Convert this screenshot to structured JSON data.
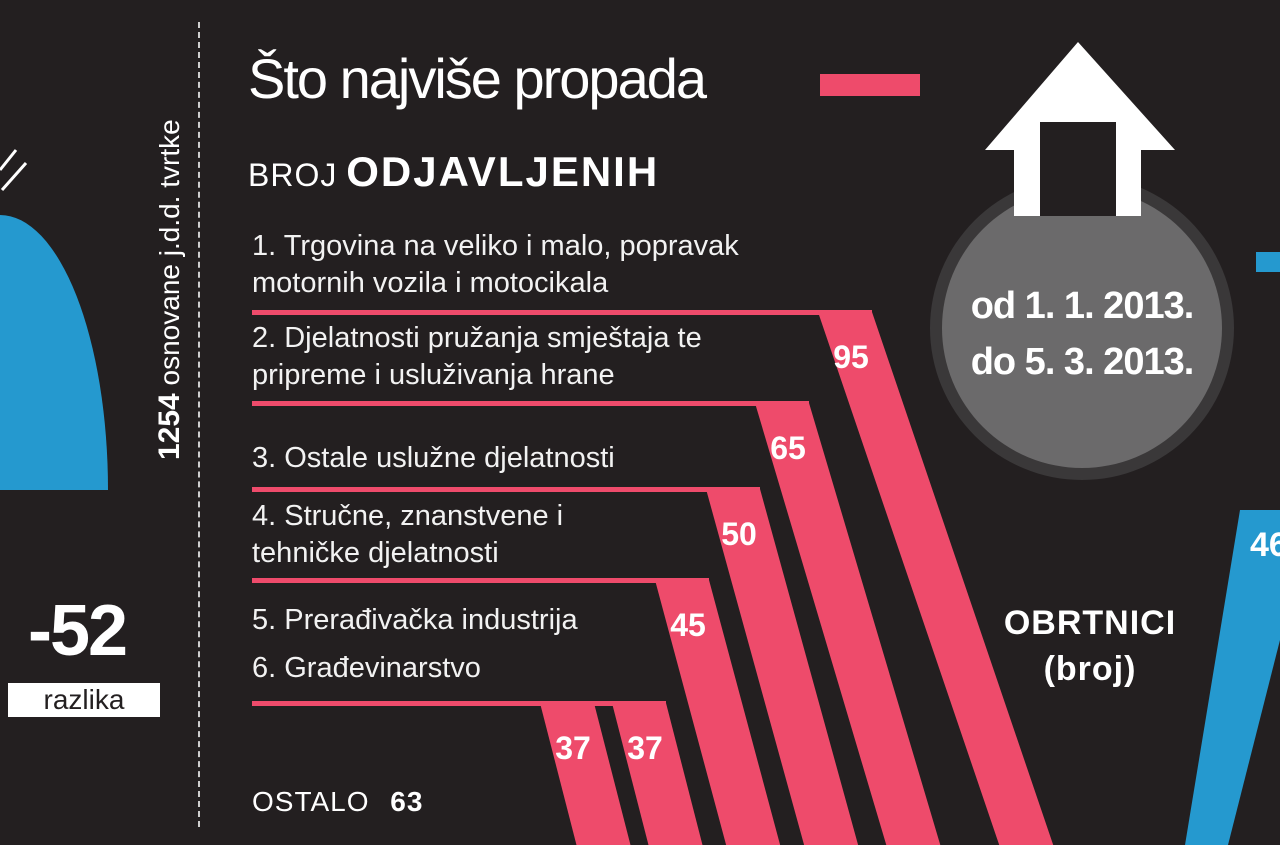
{
  "title": "Što najviše propada",
  "subtitle": {
    "pre": "BROJ",
    "strong": "ODJAVLJENIH"
  },
  "side_note": {
    "number": "1254",
    "text": "osnovane j.d.d. tvrtke"
  },
  "difference": {
    "value": "-52",
    "label": "razlika"
  },
  "period": {
    "line1": "od 1. 1. 2013.",
    "line2": "do 5. 3. 2013."
  },
  "right_label": {
    "line1": "OBRTNICI",
    "line2": "(broj)"
  },
  "right_partial_value": "46",
  "other": {
    "label": "OSTALO",
    "value": "63"
  },
  "colors": {
    "background": "#231f20",
    "accent": "#ee4b6b",
    "blue": "#2599cf",
    "circle": "#6b6a6b"
  },
  "chart_data": {
    "type": "bar",
    "title": "Što najviše propada",
    "subtitle": "BROJ ODJAVLJENIH",
    "categories": [
      [
        "1. Trgovina na veliko i malo, popravak",
        "motornih vozila i motocikala"
      ],
      [
        "2. Djelatnosti pružanja smještaja te",
        "pripreme i usluživanja hrane"
      ],
      [
        "3. Ostale uslužne djelatnosti"
      ],
      [
        "4. Stručne, znanstvene i",
        "tehničke djelatnosti"
      ],
      [
        "5. Prerađivačka industrija"
      ],
      [
        "6. Građevinarstvo"
      ]
    ],
    "values": [
      95,
      65,
      50,
      45,
      37,
      37
    ],
    "other": {
      "label": "OSTALO",
      "value": 63
    }
  }
}
